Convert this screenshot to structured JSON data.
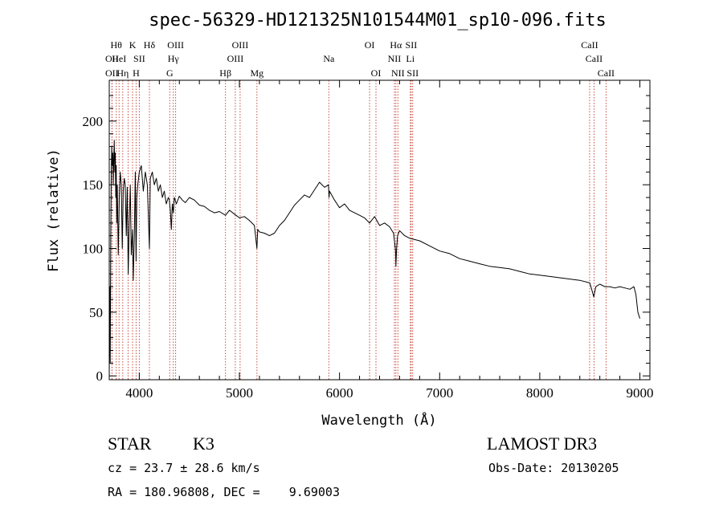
{
  "chart_data": {
    "type": "line",
    "title": "spec-56329-HD121325N101544M01_sp10-096.fits",
    "xlabel": "Wavelength (Å)",
    "ylabel": "Flux (relative)",
    "xlim": [
      3700,
      9100
    ],
    "ylim": [
      -3,
      232
    ],
    "xticks": [
      4000,
      5000,
      6000,
      7000,
      8000,
      9000
    ],
    "yticks": [
      0,
      50,
      100,
      150,
      200
    ],
    "series": [
      {
        "name": "flux",
        "x": [
          3700,
          3705,
          3710,
          3715,
          3720,
          3725,
          3730,
          3735,
          3740,
          3745,
          3750,
          3755,
          3760,
          3765,
          3770,
          3775,
          3780,
          3790,
          3800,
          3810,
          3820,
          3830,
          3840,
          3850,
          3860,
          3870,
          3880,
          3889,
          3900,
          3910,
          3920,
          3933,
          3940,
          3950,
          3960,
          3968,
          3975,
          3985,
          4000,
          4020,
          4040,
          4060,
          4080,
          4101,
          4110,
          4130,
          4150,
          4170,
          4190,
          4210,
          4230,
          4250,
          4270,
          4290,
          4300,
          4310,
          4320,
          4330,
          4340,
          4350,
          4370,
          4400,
          4430,
          4460,
          4500,
          4550,
          4600,
          4650,
          4700,
          4750,
          4800,
          4861,
          4900,
          4950,
          5000,
          5050,
          5100,
          5150,
          5175,
          5183,
          5200,
          5250,
          5300,
          5350,
          5400,
          5450,
          5500,
          5550,
          5600,
          5650,
          5700,
          5750,
          5800,
          5850,
          5890,
          5895,
          5900,
          5950,
          6000,
          6050,
          6100,
          6150,
          6200,
          6250,
          6300,
          6350,
          6400,
          6450,
          6500,
          6540,
          6560,
          6563,
          6570,
          6580,
          6600,
          6650,
          6700,
          6750,
          6800,
          6900,
          7000,
          7100,
          7200,
          7300,
          7400,
          7500,
          7600,
          7700,
          7800,
          7900,
          8000,
          8100,
          8200,
          8300,
          8400,
          8500,
          8540,
          8560,
          8600,
          8650,
          8700,
          8750,
          8800,
          8850,
          8900,
          8940,
          8960,
          8980,
          9000
        ],
        "y": [
          0,
          70,
          10,
          110,
          160,
          180,
          165,
          175,
          150,
          170,
          185,
          160,
          175,
          140,
          165,
          120,
          150,
          95,
          140,
          160,
          150,
          100,
          145,
          155,
          150,
          110,
          148,
          80,
          120,
          150,
          95,
          115,
          75,
          110,
          160,
          90,
          140,
          150,
          160,
          165,
          145,
          160,
          150,
          100,
          155,
          160,
          150,
          155,
          145,
          150,
          140,
          145,
          135,
          140,
          138,
          130,
          115,
          135,
          128,
          140,
          135,
          141,
          138,
          136,
          140,
          138,
          134,
          133,
          130,
          128,
          129,
          126,
          130,
          127,
          124,
          125,
          122,
          118,
          100,
          115,
          113,
          112,
          110,
          112,
          118,
          122,
          128,
          134,
          138,
          142,
          140,
          146,
          152,
          148,
          150,
          140,
          145,
          138,
          132,
          135,
          130,
          128,
          126,
          124,
          120,
          125,
          118,
          120,
          117,
          112,
          98,
          86,
          100,
          110,
          114,
          110,
          108,
          107,
          106,
          102,
          98,
          96,
          92,
          90,
          88,
          86,
          85,
          84,
          82,
          80,
          79,
          78,
          77,
          76,
          75,
          73,
          62,
          70,
          72,
          70,
          70,
          69,
          70,
          69,
          68,
          70,
          64,
          50,
          45
        ]
      }
    ],
    "line_markers": [
      {
        "wl": 3727,
        "label": "OII",
        "row": 1
      },
      {
        "wl": 3727,
        "label": "OII",
        "row": 2
      },
      {
        "wl": 3770,
        "label": "Hθ",
        "row": 0
      },
      {
        "wl": 3798,
        "label": "HeI",
        "row": 1
      },
      {
        "wl": 3835,
        "label": "Hη",
        "row": 2
      },
      {
        "wl": 3889,
        "label": "",
        "row": -1
      },
      {
        "wl": 3933,
        "label": "K",
        "row": 0
      },
      {
        "wl": 3968,
        "label": "H",
        "row": 2
      },
      {
        "wl": 4000,
        "label": "SII",
        "row": 1
      },
      {
        "wl": 4101,
        "label": "Hδ",
        "row": 0
      },
      {
        "wl": 4304,
        "label": "G",
        "row": 2
      },
      {
        "wl": 4340,
        "label": "Hγ",
        "row": 1
      },
      {
        "wl": 4363,
        "label": "OIII",
        "row": 0
      },
      {
        "wl": 4861,
        "label": "Hβ",
        "row": 2
      },
      {
        "wl": 4959,
        "label": "OIII",
        "row": 1
      },
      {
        "wl": 5007,
        "label": "OIII",
        "row": 0
      },
      {
        "wl": 5175,
        "label": "Mg",
        "row": 2
      },
      {
        "wl": 5893,
        "label": "Na",
        "row": 1
      },
      {
        "wl": 6300,
        "label": "OI",
        "row": 0
      },
      {
        "wl": 6364,
        "label": "OI",
        "row": 2
      },
      {
        "wl": 6548,
        "label": "NII",
        "row": 1
      },
      {
        "wl": 6563,
        "label": "Hα",
        "row": 0
      },
      {
        "wl": 6583,
        "label": "NII",
        "row": 2
      },
      {
        "wl": 6707,
        "label": "Li",
        "row": 1
      },
      {
        "wl": 6716,
        "label": "SII",
        "row": 0
      },
      {
        "wl": 6731,
        "label": "SII",
        "row": 2
      },
      {
        "wl": 8498,
        "label": "CaII",
        "row": 0
      },
      {
        "wl": 8542,
        "label": "CaII",
        "row": 1
      },
      {
        "wl": 8662,
        "label": "CaII",
        "row": 2
      }
    ]
  },
  "info": {
    "object_class": "STAR",
    "subclass": "K3",
    "survey": "LAMOST DR3",
    "redshift": "cz = 23.7 ± 28.6 km/s",
    "obs_date": "Obs-Date: 20130205",
    "coords": "RA = 180.96808, DEC =    9.69003"
  }
}
